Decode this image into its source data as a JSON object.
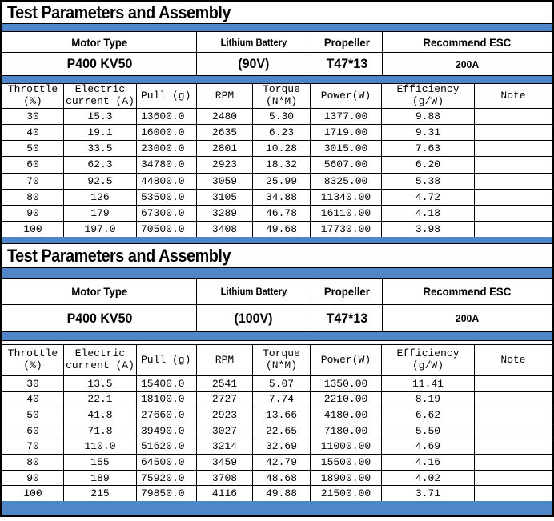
{
  "colors": {
    "accent_blue": "#4f86c8",
    "border": "#000000",
    "background": "#ffffff",
    "text": "#000000"
  },
  "tables": [
    {
      "title": "Test Parameters and Assembly",
      "info": {
        "headers": [
          "Motor Type",
          "Lithium Battery",
          "Propeller",
          "Recommend ESC"
        ],
        "values": [
          "P400 KV50",
          "(90V)",
          "T47*13",
          "200A"
        ]
      },
      "columns": [
        "Throttle\n(%)",
        "Electric\ncurrent (A)",
        "Pull (g)",
        "RPM",
        "Torque\n(N*M)",
        "Power(W)",
        "Efficiency\n(g/W)",
        "Note"
      ],
      "rows": [
        [
          "30",
          "15.3",
          "13600.0",
          "2480",
          "5.30",
          "1377.00",
          "9.88",
          ""
        ],
        [
          "40",
          "19.1",
          "16000.0",
          "2635",
          "6.23",
          "1719.00",
          "9.31",
          ""
        ],
        [
          "50",
          "33.5",
          "23000.0",
          "2801",
          "10.28",
          "3015.00",
          "7.63",
          ""
        ],
        [
          "60",
          "62.3",
          "34780.0",
          "2923",
          "18.32",
          "5607.00",
          "6.20",
          ""
        ],
        [
          "70",
          "92.5",
          "44800.0",
          "3059",
          "25.99",
          "8325.00",
          "5.38",
          ""
        ],
        [
          "80",
          "126",
          "53500.0",
          "3105",
          "34.88",
          "11340.00",
          "4.72",
          ""
        ],
        [
          "90",
          "179",
          "67300.0",
          "3289",
          "46.78",
          "16110.00",
          "4.18",
          ""
        ],
        [
          "100",
          "197.0",
          "70500.0",
          "3408",
          "49.68",
          "17730.00",
          "3.98",
          ""
        ]
      ]
    },
    {
      "title": "Test Parameters and Assembly",
      "info": {
        "headers": [
          "Motor Type",
          "Lithium Battery",
          "Propeller",
          "Recommend ESC"
        ],
        "values": [
          "P400 KV50",
          "(100V)",
          "T47*13",
          "200A"
        ]
      },
      "columns": [
        "Throttle\n(%)",
        "Electric\ncurrent (A)",
        "Pull (g)",
        "RPM",
        "Torque\n(N*M)",
        "Power(W)",
        "Efficiency\n(g/W)",
        "Note"
      ],
      "rows": [
        [
          "30",
          "13.5",
          "15400.0",
          "2541",
          "5.07",
          "1350.00",
          "11.41",
          ""
        ],
        [
          "40",
          "22.1",
          "18100.0",
          "2727",
          "7.74",
          "2210.00",
          "8.19",
          ""
        ],
        [
          "50",
          "41.8",
          "27660.0",
          "2923",
          "13.66",
          "4180.00",
          "6.62",
          ""
        ],
        [
          "60",
          "71.8",
          "39490.0",
          "3027",
          "22.65",
          "7180.00",
          "5.50",
          ""
        ],
        [
          "70",
          "110.0",
          "51620.0",
          "3214",
          "32.69",
          "11000.00",
          "4.69",
          ""
        ],
        [
          "80",
          "155",
          "64500.0",
          "3459",
          "42.79",
          "15500.00",
          "4.16",
          ""
        ],
        [
          "90",
          "189",
          "75920.0",
          "3708",
          "48.68",
          "18900.00",
          "4.02",
          ""
        ],
        [
          "100",
          "215",
          "79850.0",
          "4116",
          "49.88",
          "21500.00",
          "3.71",
          ""
        ]
      ]
    }
  ]
}
